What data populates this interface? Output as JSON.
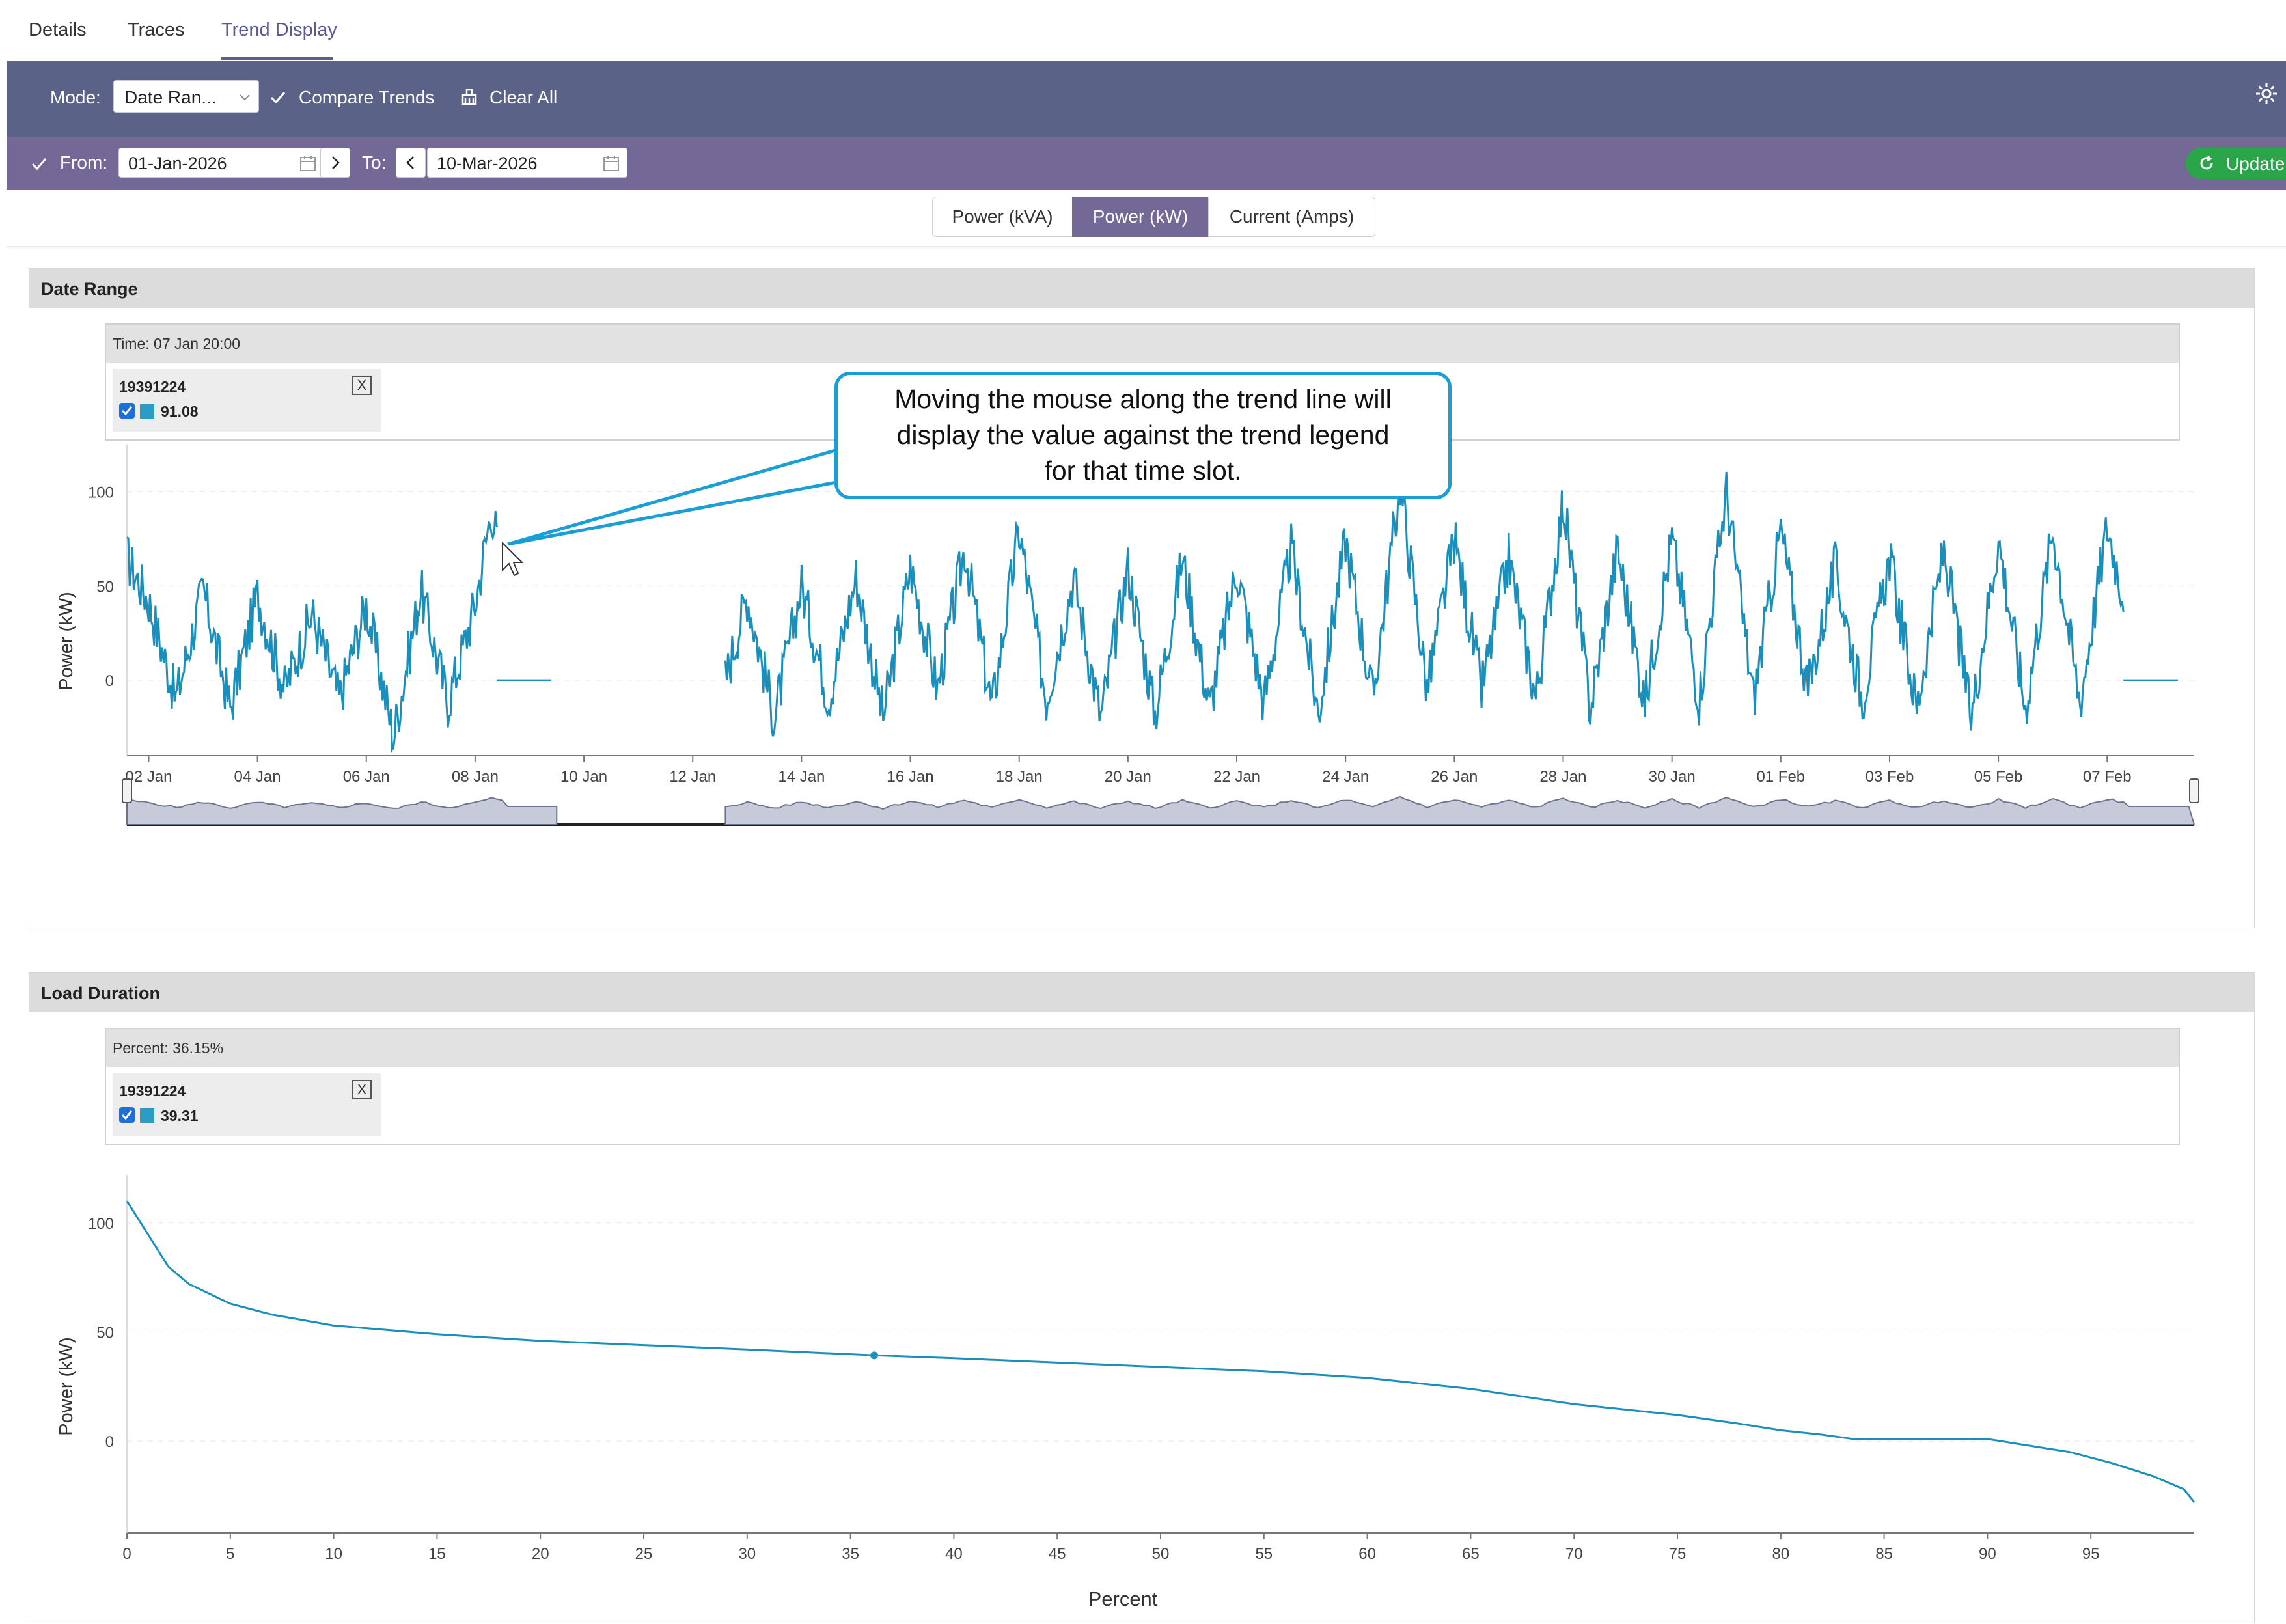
{
  "tabs": [
    {
      "label": "Details"
    },
    {
      "label": "Traces"
    },
    {
      "label": "Trend Display"
    }
  ],
  "mode_bar": {
    "mode_label": "Mode:",
    "mode_value": "Date Ran...",
    "compare_trends": "Compare Trends",
    "clear_all": "Clear All",
    "icons": [
      "check-icon",
      "clear-all-icon",
      "gear-icon",
      "chevron-down-icon"
    ]
  },
  "date_bar": {
    "from_label": "From:",
    "from_value": "01-Jan-2026",
    "to_label": "To:",
    "to_value": "10-Mar-2026",
    "update_label": "Update",
    "icons": [
      "check-icon",
      "calendar-icon",
      "chevron-right-icon",
      "chevron-left-icon",
      "refresh-icon"
    ]
  },
  "units": [
    {
      "label": "Power (kVA)",
      "active": false
    },
    {
      "label": "Power (kW)",
      "active": true
    },
    {
      "label": "Current (Amps)",
      "active": false
    }
  ],
  "colors": {
    "mode_bar": "#5b6288",
    "date_bar": "#736896",
    "series": "#1a8fbb",
    "update": "#2aa54a",
    "callout_border": "#1a9ed6"
  },
  "date_range_panel": {
    "title": "Date Range",
    "tooltip_header": "Time: 07 Jan 20:00",
    "legend_id": "19391224",
    "legend_value": "91.08"
  },
  "load_duration_panel": {
    "title": "Load Duration",
    "tooltip_header": "Percent: 36.15%",
    "legend_id": "19391224",
    "legend_value": "39.31"
  },
  "callout": {
    "line1": "Moving the mouse along the trend line will",
    "line2": "display the value against the trend legend",
    "line3": "for that time slot."
  },
  "chart_data": [
    {
      "type": "line",
      "name": "date-range-trend",
      "ylabel": "Power (kW)",
      "xlabel": "",
      "ylim": [
        -40,
        125
      ],
      "yticks": [
        0,
        50,
        100
      ],
      "x_ticks": [
        "02 Jan",
        "04 Jan",
        "06 Jan",
        "08 Jan",
        "10 Jan",
        "12 Jan",
        "14 Jan",
        "16 Jan",
        "18 Jan",
        "20 Jan",
        "22 Jan",
        "24 Jan",
        "26 Jan",
        "28 Jan",
        "30 Jan",
        "01 Feb",
        "03 Feb",
        "05 Feb",
        "07 Feb"
      ],
      "x_range_days": [
        0.6,
        38.6
      ],
      "series": [
        {
          "daily_pattern_days": [
            0.6,
            1.0,
            1.5,
            2.0,
            2.5,
            3.0,
            3.5,
            4.0,
            4.5,
            5.0,
            5.5,
            6.0,
            6.5,
            7.0,
            7.3,
            7.5,
            7.6,
            8.5,
            11.6,
            12.0,
            12.5,
            13.0,
            13.5,
            14.0,
            14.5,
            15.0,
            15.5,
            16.0,
            16.5,
            17.0,
            17.5,
            18.0,
            18.5,
            19.0,
            19.5,
            20.0,
            20.5,
            21.0,
            21.5,
            22.0,
            22.5,
            23.0,
            23.5,
            24.0,
            24.5,
            25.0,
            25.5,
            26.0,
            26.5,
            27.0,
            27.5,
            28.0,
            28.5,
            29.0,
            29.5,
            30.0,
            30.5,
            31.0,
            31.5,
            32.0,
            32.5,
            33.0,
            33.5,
            34.0,
            34.5,
            35.0,
            35.5,
            36.0,
            36.5,
            37.0,
            37.3,
            37.5,
            37.6,
            38.6
          ],
          "values": [
            65,
            42,
            -10,
            48,
            -15,
            45,
            -5,
            35,
            -10,
            40,
            -30,
            48,
            -12,
            40,
            91,
            60,
            0,
            0,
            0,
            45,
            -20,
            50,
            -10,
            55,
            -20,
            60,
            -5,
            70,
            -15,
            80,
            -10,
            55,
            -20,
            60,
            -18,
            65,
            -15,
            60,
            -12,
            70,
            -18,
            75,
            -10,
            105,
            -5,
            75,
            -5,
            65,
            -10,
            95,
            -15,
            70,
            -12,
            75,
            -10,
            100,
            -10,
            80,
            -5,
            60,
            -10,
            65,
            -15,
            70,
            -20,
            75,
            -15,
            80,
            -12,
            82,
            45,
            0,
            0,
            0
          ]
        }
      ],
      "gap_days": [
        8.5,
        11.6
      ]
    },
    {
      "type": "line",
      "name": "load-duration",
      "xlabel": "Percent",
      "ylabel": "Power (kW)",
      "xlim": [
        0,
        100
      ],
      "ylim": [
        -42,
        122
      ],
      "xticks": [
        0,
        5,
        10,
        15,
        20,
        25,
        30,
        35,
        40,
        45,
        50,
        55,
        60,
        65,
        70,
        75,
        80,
        85,
        90,
        95
      ],
      "yticks": [
        0,
        50,
        100
      ],
      "series": [
        {
          "x": [
            0,
            1,
            2,
            3,
            5,
            7,
            10,
            15,
            20,
            25,
            30,
            36.15,
            40,
            45,
            50,
            55,
            60,
            65,
            70,
            75,
            78,
            80,
            82,
            83.5,
            86,
            90,
            92,
            94,
            96,
            98,
            99.5,
            100
          ],
          "y": [
            110,
            95,
            80,
            72,
            63,
            58,
            53,
            49,
            46,
            44,
            42,
            39.31,
            38,
            36,
            34,
            32,
            29,
            24,
            17,
            12,
            8,
            5,
            3,
            1,
            1,
            1,
            -2,
            -5,
            -10,
            -16,
            -22,
            -28
          ]
        }
      ],
      "highlight": {
        "x": 36.15,
        "y": 39.31
      }
    }
  ]
}
